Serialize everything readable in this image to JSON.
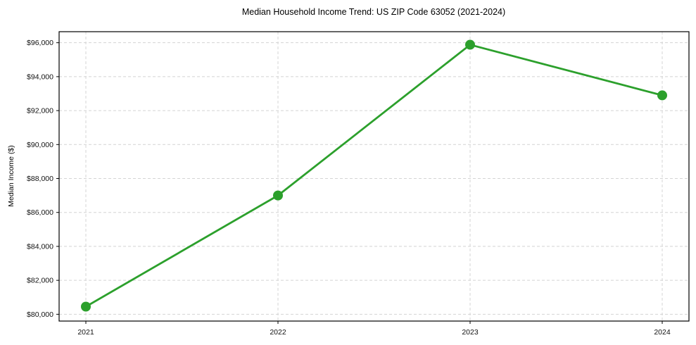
{
  "chart_data": {
    "type": "line",
    "title": "Median Household Income Trend: US ZIP Code 63052 (2021-2024)",
    "xlabel": "",
    "ylabel": "Median Income ($)",
    "categories": [
      "2021",
      "2022",
      "2023",
      "2024"
    ],
    "series": [
      {
        "name": "Median household income",
        "values": [
          80450,
          87000,
          95880,
          92900
        ]
      }
    ],
    "ylim": [
      79600,
      96650
    ],
    "ytick_values": [
      80000,
      82000,
      84000,
      86000,
      88000,
      90000,
      92000,
      94000,
      96000
    ],
    "ytick_labels": [
      "$80,000",
      "$82,000",
      "$84,000",
      "$86,000",
      "$88,000",
      "$90,000",
      "$92,000",
      "$94,000",
      "$96,000"
    ],
    "grid": "dashed, both axes, light gray",
    "legend": "none",
    "marker": "circle",
    "line_color": "#2ca02c",
    "grid_color": "#d4d4d4",
    "axis_color": "#000000",
    "text_color": "#111111",
    "background_color": "#ffffff"
  }
}
